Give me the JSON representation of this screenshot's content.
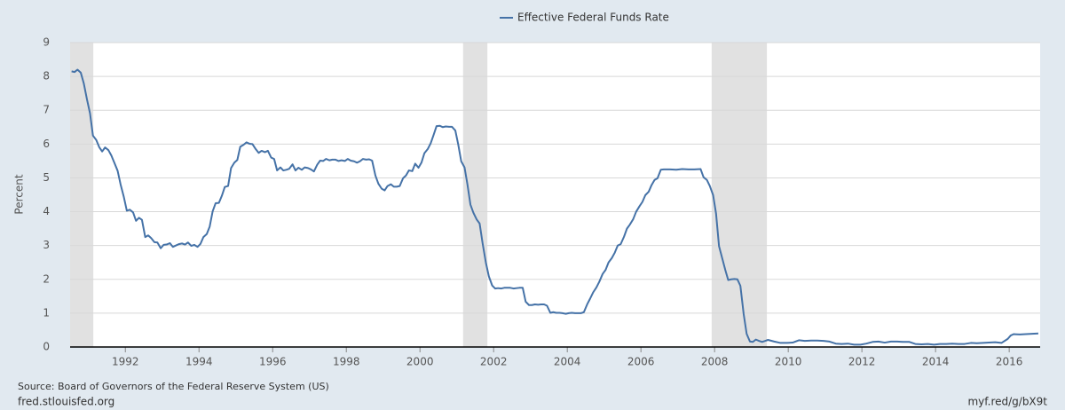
{
  "chart_data": {
    "type": "line",
    "y_label": "Percent",
    "source": "Source: Board of Governors of the Federal Reserve System (US)",
    "site": "fred.stlouisfed.org",
    "link": "myf.red/g/bX9t",
    "xlim": [
      1990.5,
      2016.84
    ],
    "xticks": [
      1992,
      1994,
      1996,
      1998,
      2000,
      2002,
      2004,
      2006,
      2008,
      2010,
      2012,
      2014,
      2016
    ],
    "ylim": [
      0,
      9
    ],
    "yticks": [
      0,
      1,
      2,
      3,
      4,
      5,
      6,
      7,
      8,
      9
    ],
    "grid": true,
    "recession_color": "#e1e1e1",
    "recessions": [
      [
        1990.5,
        1991.13
      ],
      [
        2001.17,
        2001.83
      ],
      [
        2007.92,
        2009.42
      ]
    ],
    "x": [
      1990.54,
      1990.62,
      1990.7,
      1990.79,
      1990.87,
      1990.96,
      1991.04,
      1991.12,
      1991.21,
      1991.29,
      1991.37,
      1991.45,
      1991.54,
      1991.62,
      1991.7,
      1991.79,
      1991.87,
      1991.96,
      1992.04,
      1992.12,
      1992.21,
      1992.29,
      1992.37,
      1992.45,
      1992.54,
      1992.62,
      1992.7,
      1992.79,
      1992.87,
      1992.96,
      1993.04,
      1993.12,
      1993.21,
      1993.29,
      1993.37,
      1993.45,
      1993.54,
      1993.62,
      1993.7,
      1993.79,
      1993.87,
      1993.96,
      1994.04,
      1994.12,
      1994.21,
      1994.29,
      1994.37,
      1994.45,
      1994.54,
      1994.62,
      1994.7,
      1994.79,
      1994.87,
      1994.96,
      1995.04,
      1995.12,
      1995.21,
      1995.29,
      1995.37,
      1995.45,
      1995.54,
      1995.62,
      1995.7,
      1995.79,
      1995.87,
      1995.96,
      1996.04,
      1996.12,
      1996.21,
      1996.29,
      1996.37,
      1996.45,
      1996.54,
      1996.62,
      1996.7,
      1996.79,
      1996.87,
      1996.96,
      1997.04,
      1997.12,
      1997.21,
      1997.29,
      1997.37,
      1997.45,
      1997.54,
      1997.62,
      1997.7,
      1997.79,
      1997.87,
      1997.96,
      1998.04,
      1998.12,
      1998.21,
      1998.29,
      1998.37,
      1998.45,
      1998.54,
      1998.62,
      1998.7,
      1998.79,
      1998.87,
      1998.96,
      1999.04,
      1999.12,
      1999.21,
      1999.29,
      1999.37,
      1999.45,
      1999.54,
      1999.62,
      1999.7,
      1999.79,
      1999.87,
      1999.96,
      2000.04,
      2000.12,
      2000.21,
      2000.29,
      2000.37,
      2000.45,
      2000.54,
      2000.62,
      2000.7,
      2000.79,
      2000.87,
      2000.96,
      2001.04,
      2001.12,
      2001.21,
      2001.29,
      2001.37,
      2001.45,
      2001.54,
      2001.62,
      2001.7,
      2001.79,
      2001.87,
      2001.96,
      2002.04,
      2002.12,
      2002.21,
      2002.29,
      2002.37,
      2002.45,
      2002.54,
      2002.62,
      2002.7,
      2002.79,
      2002.87,
      2002.96,
      2003.04,
      2003.12,
      2003.21,
      2003.29,
      2003.37,
      2003.45,
      2003.54,
      2003.62,
      2003.7,
      2003.79,
      2003.87,
      2003.96,
      2004.04,
      2004.12,
      2004.21,
      2004.29,
      2004.37,
      2004.45,
      2004.54,
      2004.62,
      2004.7,
      2004.79,
      2004.87,
      2004.96,
      2005.04,
      2005.12,
      2005.21,
      2005.29,
      2005.37,
      2005.45,
      2005.54,
      2005.62,
      2005.7,
      2005.79,
      2005.87,
      2005.96,
      2006.04,
      2006.12,
      2006.21,
      2006.29,
      2006.37,
      2006.45,
      2006.54,
      2006.62,
      2006.79,
      2006.96,
      2007.12,
      2007.29,
      2007.45,
      2007.62,
      2007.7,
      2007.79,
      2007.87,
      2007.96,
      2008.04,
      2008.12,
      2008.21,
      2008.29,
      2008.37,
      2008.45,
      2008.54,
      2008.62,
      2008.7,
      2008.79,
      2008.87,
      2008.96,
      2009.04,
      2009.12,
      2009.21,
      2009.29,
      2009.37,
      2009.45,
      2009.62,
      2009.79,
      2009.96,
      2010.12,
      2010.29,
      2010.45,
      2010.62,
      2010.79,
      2010.96,
      2011.12,
      2011.29,
      2011.45,
      2011.62,
      2011.79,
      2011.96,
      2012.12,
      2012.29,
      2012.45,
      2012.62,
      2012.79,
      2012.96,
      2013.12,
      2013.29,
      2013.45,
      2013.62,
      2013.79,
      2013.96,
      2014.12,
      2014.29,
      2014.45,
      2014.62,
      2014.79,
      2014.96,
      2015.12,
      2015.29,
      2015.45,
      2015.62,
      2015.79,
      2015.96,
      2016.04,
      2016.12,
      2016.29,
      2016.45,
      2016.62,
      2016.79
    ],
    "series": [
      {
        "name": "Effective Federal Funds Rate",
        "color": "#4572a7",
        "values": [
          8.15,
          8.13,
          8.2,
          8.11,
          7.8,
          7.31,
          6.91,
          6.25,
          6.12,
          5.91,
          5.78,
          5.9,
          5.82,
          5.66,
          5.45,
          5.21,
          4.81,
          4.43,
          4.03,
          4.06,
          3.98,
          3.73,
          3.82,
          3.76,
          3.25,
          3.3,
          3.22,
          3.1,
          3.09,
          2.92,
          3.02,
          3.03,
          3.07,
          2.96,
          3.0,
          3.04,
          3.06,
          3.03,
          3.09,
          2.99,
          3.02,
          2.96,
          3.05,
          3.25,
          3.34,
          3.56,
          4.01,
          4.25,
          4.26,
          4.47,
          4.73,
          4.76,
          5.29,
          5.45,
          5.53,
          5.92,
          5.98,
          6.05,
          6.01,
          6.0,
          5.85,
          5.74,
          5.8,
          5.76,
          5.8,
          5.6,
          5.56,
          5.22,
          5.31,
          5.22,
          5.24,
          5.27,
          5.4,
          5.22,
          5.3,
          5.24,
          5.31,
          5.29,
          5.25,
          5.19,
          5.39,
          5.51,
          5.5,
          5.56,
          5.52,
          5.54,
          5.54,
          5.5,
          5.52,
          5.5,
          5.56,
          5.51,
          5.49,
          5.45,
          5.49,
          5.56,
          5.54,
          5.55,
          5.51,
          5.07,
          4.83,
          4.68,
          4.63,
          4.76,
          4.81,
          4.74,
          4.74,
          4.76,
          4.99,
          5.07,
          5.22,
          5.2,
          5.42,
          5.3,
          5.45,
          5.73,
          5.85,
          6.02,
          6.27,
          6.53,
          6.54,
          6.5,
          6.52,
          6.51,
          6.51,
          6.4,
          5.98,
          5.49,
          5.31,
          4.8,
          4.21,
          3.97,
          3.77,
          3.65,
          3.07,
          2.49,
          2.09,
          1.82,
          1.73,
          1.74,
          1.73,
          1.75,
          1.75,
          1.75,
          1.73,
          1.74,
          1.75,
          1.75,
          1.34,
          1.24,
          1.24,
          1.26,
          1.25,
          1.26,
          1.26,
          1.22,
          1.01,
          1.03,
          1.01,
          1.01,
          1.0,
          0.98,
          1.0,
          1.01,
          1.0,
          1.0,
          1.0,
          1.03,
          1.26,
          1.43,
          1.61,
          1.76,
          1.93,
          2.16,
          2.28,
          2.5,
          2.63,
          2.79,
          3.0,
          3.04,
          3.26,
          3.5,
          3.62,
          3.78,
          4.0,
          4.16,
          4.29,
          4.49,
          4.59,
          4.79,
          4.94,
          4.99,
          5.24,
          5.25,
          5.25,
          5.24,
          5.26,
          5.25,
          5.25,
          5.26,
          5.02,
          4.94,
          4.76,
          4.49,
          3.94,
          2.98,
          2.61,
          2.28,
          1.98,
          2.0,
          2.01,
          2.0,
          1.81,
          0.97,
          0.39,
          0.16,
          0.15,
          0.22,
          0.18,
          0.15,
          0.18,
          0.21,
          0.16,
          0.12,
          0.12,
          0.13,
          0.2,
          0.18,
          0.19,
          0.19,
          0.18,
          0.16,
          0.1,
          0.09,
          0.1,
          0.07,
          0.07,
          0.1,
          0.15,
          0.16,
          0.13,
          0.16,
          0.16,
          0.15,
          0.15,
          0.09,
          0.08,
          0.09,
          0.07,
          0.09,
          0.09,
          0.1,
          0.09,
          0.09,
          0.12,
          0.11,
          0.12,
          0.13,
          0.14,
          0.12,
          0.24,
          0.34,
          0.38,
          0.37,
          0.38,
          0.39,
          0.4
        ]
      }
    ]
  }
}
